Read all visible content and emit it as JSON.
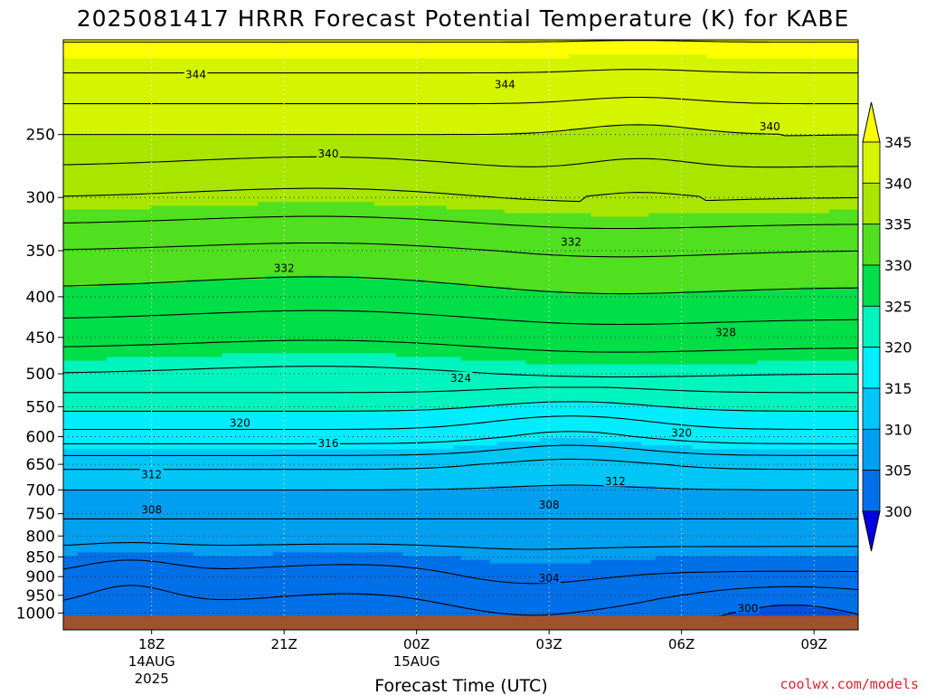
{
  "chart_data": {
    "type": "heatmap",
    "title": "2025081417 HRRR Forecast Potential Temperature (K) for KABE",
    "xlabel": "Forecast Time (UTC)",
    "ylabel": "",
    "x_range_hours": [
      -1,
      17
    ],
    "y_scale": "log",
    "y_range_hpa": [
      1050,
      190
    ],
    "x_ticks": [
      {
        "hour": 1,
        "label": "18Z",
        "sub1": "14AUG",
        "sub2": "2025"
      },
      {
        "hour": 4,
        "label": "21Z",
        "sub1": "",
        "sub2": ""
      },
      {
        "hour": 7,
        "label": "00Z",
        "sub1": "15AUG",
        "sub2": ""
      },
      {
        "hour": 10,
        "label": "03Z",
        "sub1": "",
        "sub2": ""
      },
      {
        "hour": 13,
        "label": "06Z",
        "sub1": "",
        "sub2": ""
      },
      {
        "hour": 16,
        "label": "09Z",
        "sub1": "",
        "sub2": ""
      }
    ],
    "y_ticks": [
      {
        "p": 250,
        "label": "250"
      },
      {
        "p": 300,
        "label": "300"
      },
      {
        "p": 350,
        "label": "350"
      },
      {
        "p": 400,
        "label": "400"
      },
      {
        "p": 450,
        "label": "450"
      },
      {
        "p": 500,
        "label": "500"
      },
      {
        "p": 550,
        "label": "550"
      },
      {
        "p": 600,
        "label": "600"
      },
      {
        "p": 650,
        "label": "650"
      },
      {
        "p": 700,
        "label": "700"
      },
      {
        "p": 750,
        "label": "750"
      },
      {
        "p": 800,
        "label": "800"
      },
      {
        "p": 850,
        "label": "850"
      },
      {
        "p": 900,
        "label": "900"
      },
      {
        "p": 950,
        "label": "950"
      },
      {
        "p": 1000,
        "label": "1000"
      }
    ],
    "surface_pressure_hpa": 1008,
    "ground_color": "#a0522d",
    "colorbar": {
      "ticks": [
        "345",
        "340",
        "335",
        "330",
        "325",
        "320",
        "315",
        "310",
        "305",
        "300"
      ],
      "fill_levels": [
        {
          "min": 345,
          "color": "#ffff00"
        },
        {
          "min": 340,
          "color": "#d4f500"
        },
        {
          "min": 335,
          "color": "#a8e600"
        },
        {
          "min": 330,
          "color": "#50e020"
        },
        {
          "min": 325,
          "color": "#00de48"
        },
        {
          "min": 320,
          "color": "#00f5be"
        },
        {
          "min": 315,
          "color": "#00edff"
        },
        {
          "min": 310,
          "color": "#00c6f8"
        },
        {
          "min": 305,
          "color": "#009ff0"
        },
        {
          "min": 300,
          "color": "#0070e8"
        },
        {
          "min": 0,
          "color": "#0050e0"
        },
        {
          "min": -1,
          "color": "#0010d8"
        }
      ],
      "over_color": "#ffff00",
      "under_color": "#0000e0"
    },
    "contour_interval_k": 2,
    "contour_labels": [
      {
        "value": "344",
        "hour": 2.0,
        "p": 210
      },
      {
        "value": "344",
        "hour": 9.0,
        "p": 216
      },
      {
        "value": "340",
        "hour": 5.0,
        "p": 264
      },
      {
        "value": "340",
        "hour": 15.0,
        "p": 244
      },
      {
        "value": "332",
        "hour": 10.5,
        "p": 341
      },
      {
        "value": "332",
        "hour": 4.0,
        "p": 368
      },
      {
        "value": "328",
        "hour": 14.0,
        "p": 443
      },
      {
        "value": "324",
        "hour": 8.0,
        "p": 506
      },
      {
        "value": "320",
        "hour": 3.0,
        "p": 576
      },
      {
        "value": "320",
        "hour": 13.0,
        "p": 593
      },
      {
        "value": "316",
        "hour": 5.0,
        "p": 611
      },
      {
        "value": "312",
        "hour": 1.0,
        "p": 669
      },
      {
        "value": "312",
        "hour": 11.5,
        "p": 682
      },
      {
        "value": "308",
        "hour": 1.0,
        "p": 741
      },
      {
        "value": "308",
        "hour": 10.0,
        "p": 730
      },
      {
        "value": "304",
        "hour": 10.0,
        "p": 903
      },
      {
        "value": "300",
        "hour": 14.5,
        "p": 986
      }
    ]
  },
  "credit": "coolwx.com/models"
}
